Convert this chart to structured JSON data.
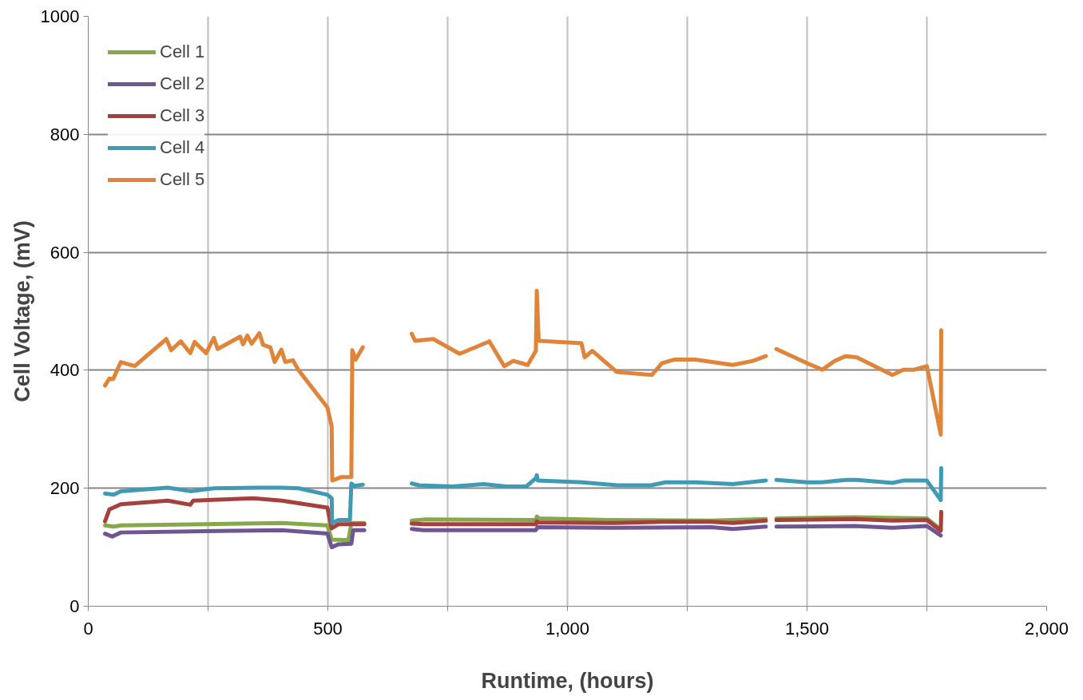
{
  "chart_data": {
    "type": "line",
    "xlabel": "Runtime, (hours)",
    "ylabel": "Cell Voltage, (mV)",
    "xlim": [
      0,
      2000
    ],
    "ylim": [
      0,
      1000
    ],
    "xticks": [
      0,
      {
        "value": 250,
        "label": null
      },
      {
        "value": 500,
        "label": "500"
      },
      {
        "value": 750,
        "label": null
      },
      {
        "value": 1000,
        "label": "1,000"
      },
      {
        "value": 1250,
        "label": null
      },
      {
        "value": 1500,
        "label": "1,500"
      },
      {
        "value": 1750,
        "label": null
      },
      {
        "value": 2000,
        "label": "2,000"
      }
    ],
    "yticks": [
      0,
      200,
      400,
      600,
      800,
      1000
    ],
    "grid": true,
    "legend": "top left",
    "marker": "none",
    "line_style": "solid",
    "series": [
      {
        "name": "Cell 1",
        "color": "#86a84a",
        "x": [
          35,
          53,
          68,
          404,
          499,
          508,
          543,
          549,
          576,
          620,
          675,
          700,
          934,
          936,
          940,
          1100,
          1300,
          1414,
          1425,
          1436,
          1600,
          1750,
          1779
        ],
        "values": [
          137,
          135,
          137,
          141,
          137,
          113,
          112,
          141,
          141,
          null,
          145,
          147,
          146,
          152,
          149,
          146,
          145,
          148,
          null,
          149,
          151,
          149,
          130
        ]
      },
      {
        "name": "Cell 2",
        "color": "#6f5693",
        "x": [
          35,
          50,
          68,
          404,
          499,
          508,
          522,
          549,
          553,
          576,
          620,
          675,
          700,
          800,
          934,
          938,
          1100,
          1300,
          1345,
          1414,
          1425,
          1436,
          1600,
          1678,
          1750,
          1779
        ],
        "values": [
          123,
          118,
          125,
          129,
          123,
          100,
          105,
          106,
          129,
          129,
          null,
          131,
          129,
          129,
          129,
          134,
          133,
          134,
          131,
          135,
          null,
          135,
          136,
          133,
          136,
          120
        ]
      },
      {
        "name": "Cell 3",
        "color": "#a5403d",
        "x": [
          35,
          44,
          68,
          166,
          213,
          219,
          344,
          404,
          499,
          508,
          522,
          576,
          620,
          675,
          700,
          934,
          936,
          940,
          1100,
          1200,
          1300,
          1345,
          1414,
          1425,
          1436,
          1600,
          1678,
          1750,
          1779,
          1780
        ],
        "values": [
          144,
          164,
          173,
          179,
          172,
          179,
          183,
          179,
          167,
          132,
          139,
          139,
          null,
          140,
          139,
          139,
          144,
          142,
          141,
          143,
          143,
          141,
          145,
          null,
          146,
          148,
          145,
          146,
          128,
          160
        ]
      },
      {
        "name": "Cell 4",
        "color": "#3e9bb3",
        "x": [
          35,
          53,
          68,
          166,
          213,
          262,
          356,
          404,
          439,
          499,
          508,
          509,
          522,
          546,
          549,
          555,
          573,
          620,
          675,
          690,
          760,
          825,
          872,
          914,
          934,
          936,
          938,
          1030,
          1104,
          1174,
          1205,
          1267,
          1345,
          1414,
          1425,
          1436,
          1500,
          1530,
          1581,
          1604,
          1678,
          1701,
          1750,
          1779,
          1780
        ],
        "values": [
          191,
          189,
          195,
          201,
          195,
          200,
          201,
          201,
          200,
          189,
          183,
          141,
          146,
          146,
          208,
          204,
          206,
          null,
          208,
          205,
          203,
          207,
          203,
          203,
          217,
          222,
          213,
          210,
          205,
          205,
          210,
          210,
          207,
          213,
          null,
          214,
          210,
          210,
          214,
          214,
          209,
          213,
          213,
          180,
          234
        ]
      },
      {
        "name": "Cell 5",
        "color": "#e0843a",
        "x": [
          35,
          44,
          52,
          68,
          97,
          163,
          173,
          193,
          213,
          222,
          246,
          262,
          270,
          317,
          323,
          332,
          341,
          357,
          365,
          380,
          389,
          403,
          411,
          427,
          439,
          499,
          508,
          509,
          528,
          549,
          551,
          558,
          573,
          620,
          675,
          682,
          720,
          775,
          837,
          868,
          887,
          917,
          934,
          936,
          940,
          1029,
          1036,
          1052,
          1103,
          1176,
          1197,
          1222,
          1267,
          1345,
          1387,
          1414,
          1425,
          1436,
          1500,
          1532,
          1558,
          1581,
          1604,
          1678,
          1701,
          1724,
          1750,
          1779,
          1780
        ],
        "values": [
          374,
          386,
          385,
          414,
          407,
          453,
          434,
          449,
          429,
          448,
          429,
          455,
          436,
          457,
          444,
          459,
          445,
          463,
          443,
          439,
          414,
          435,
          414,
          417,
          400,
          337,
          305,
          213,
          219,
          219,
          434,
          418,
          439,
          null,
          462,
          450,
          453,
          428,
          449,
          407,
          416,
          409,
          433,
          535,
          450,
          446,
          422,
          433,
          397,
          392,
          412,
          418,
          418,
          409,
          416,
          424,
          null,
          436,
          412,
          401,
          416,
          424,
          422,
          392,
          401,
          401,
          407,
          291,
          468
        ]
      }
    ]
  }
}
